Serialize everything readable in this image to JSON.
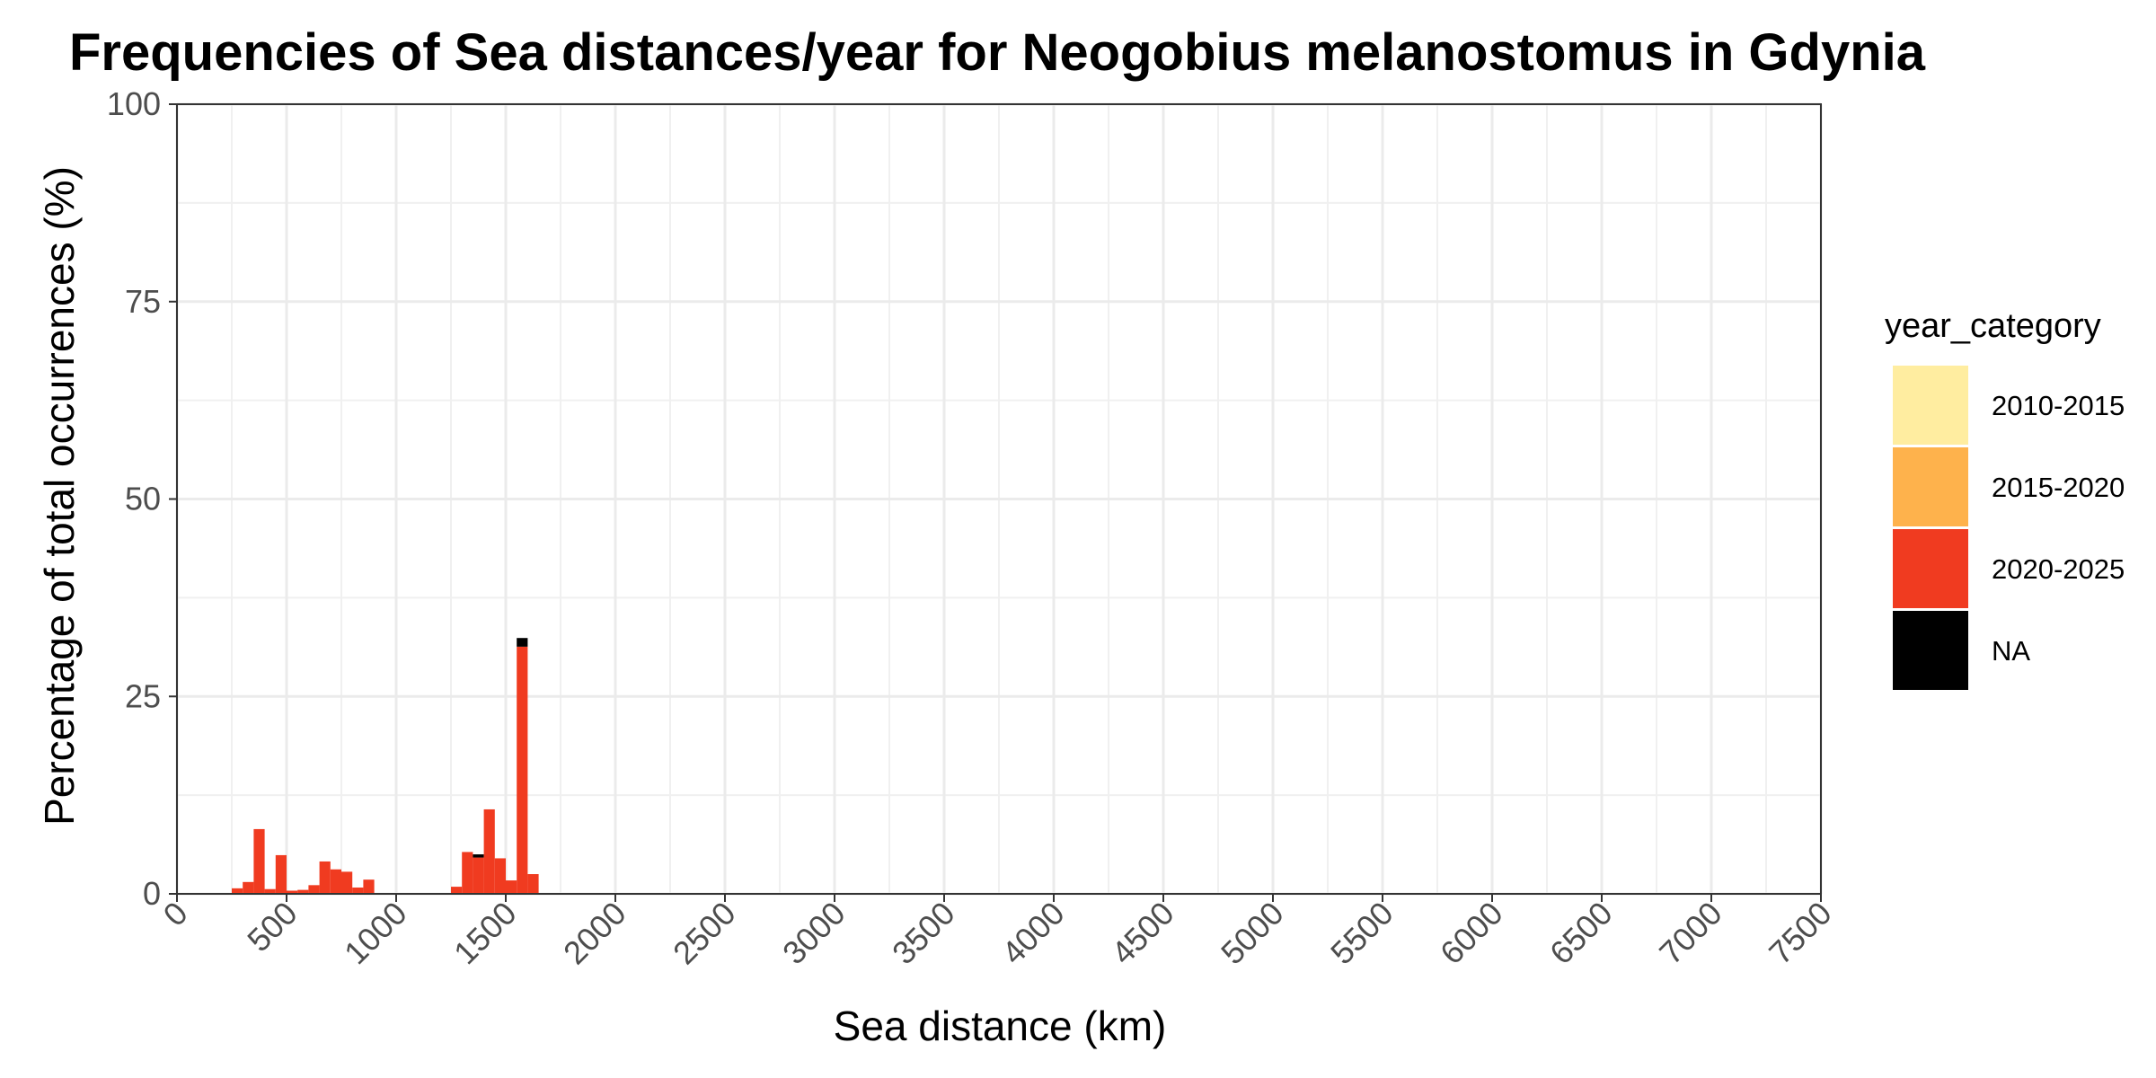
{
  "chart_data": {
    "type": "bar",
    "stacked": true,
    "title": "Frequencies of Sea distances/year for Neogobius melanostomus in Gdynia",
    "xlabel": "Sea distance (km)",
    "ylabel": "Percentage of total occurrences (%)",
    "xlim": [
      0,
      7500
    ],
    "ylim": [
      0,
      100
    ],
    "x_ticks": [
      "0",
      "500",
      "1000",
      "1500",
      "2000",
      "2500",
      "3000",
      "3500",
      "4000",
      "4500",
      "5000",
      "5500",
      "6000",
      "6500",
      "7000",
      "7500"
    ],
    "y_ticks": [
      "0",
      "25",
      "50",
      "75",
      "100"
    ],
    "bin_width": 50,
    "grid": true,
    "legend": {
      "title": "year_category",
      "position": "right",
      "entries": [
        {
          "label": "2010-2015",
          "color": "#ffeda0"
        },
        {
          "label": "2015-2020",
          "color": "#feb24c"
        },
        {
          "label": "2020-2025",
          "color": "#f03b20"
        },
        {
          "label": "NA",
          "color": "#000000"
        }
      ]
    },
    "x": [
      275,
      325,
      375,
      425,
      475,
      525,
      575,
      625,
      675,
      725,
      775,
      825,
      875,
      1275,
      1325,
      1375,
      1425,
      1475,
      1525,
      1575,
      1625
    ],
    "series": [
      {
        "name": "2020-2025",
        "values": [
          0.7,
          1.5,
          8.2,
          0.6,
          4.9,
          0.4,
          0.5,
          1.1,
          4.1,
          3.1,
          2.8,
          0.8,
          1.8,
          0.9,
          5.3,
          4.6,
          10.7,
          4.5,
          1.7,
          31.3,
          2.5
        ]
      },
      {
        "name": "NA",
        "values": [
          0,
          0,
          0,
          0,
          0,
          0,
          0,
          0,
          0,
          0,
          0,
          0,
          0,
          0,
          0,
          0.4,
          0,
          0,
          0,
          1.1,
          0
        ]
      }
    ]
  }
}
